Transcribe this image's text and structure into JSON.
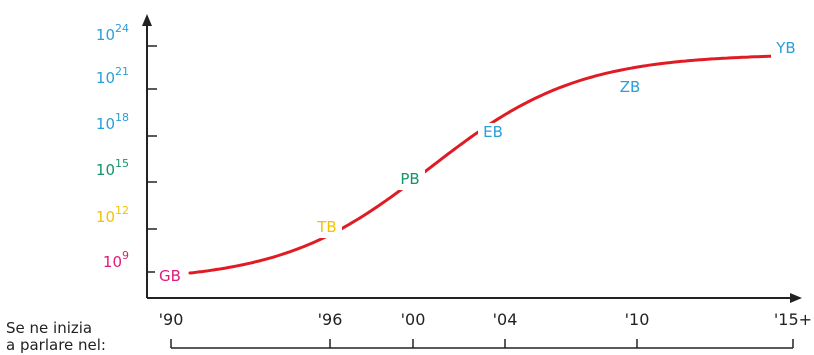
{
  "chart_data": {
    "type": "line",
    "title": "",
    "xlabel": "Se ne inizia a parlare nel:",
    "xlabel_lines": [
      "Se ne inizia",
      "a parlare nel:"
    ],
    "x_tick_labels": [
      "'90",
      "'96",
      "'00",
      "'04",
      "'10",
      "'15+"
    ],
    "y_ticks": [
      {
        "base": "10",
        "exp": "9",
        "color": "#e0197d"
      },
      {
        "base": "10",
        "exp": "12",
        "color": "#f2c400"
      },
      {
        "base": "10",
        "exp": "15",
        "color": "#12956a"
      },
      {
        "base": "10",
        "exp": "18",
        "color": "#2a9fd8"
      },
      {
        "base": "10",
        "exp": "21",
        "color": "#2a9fd8"
      },
      {
        "base": "10",
        "exp": "24",
        "color": "#2a9fd8"
      }
    ],
    "y_scale": "log10",
    "series": [
      {
        "color": "#e01b24",
        "points": [
          {
            "x": "'90",
            "y_exp": 9,
            "label": "GB",
            "label_color": "#e0197d"
          },
          {
            "x": "'96",
            "y_exp": 12,
            "label": "TB",
            "label_color": "#f2c400"
          },
          {
            "x": "'00",
            "y_exp": 15,
            "label": "PB",
            "label_color": "#12956a"
          },
          {
            "x": "'04",
            "y_exp": 18,
            "label": "EB",
            "label_color": "#2a9fd8"
          },
          {
            "x": "'10",
            "y_exp": 21,
            "label": "ZB",
            "label_color": "#2a9fd8"
          },
          {
            "x": "'15+",
            "y_exp": 24,
            "label": "YB",
            "label_color": "#2a9fd8"
          }
        ]
      }
    ],
    "grid": false,
    "legend": "none",
    "axis_color": "#222222"
  }
}
